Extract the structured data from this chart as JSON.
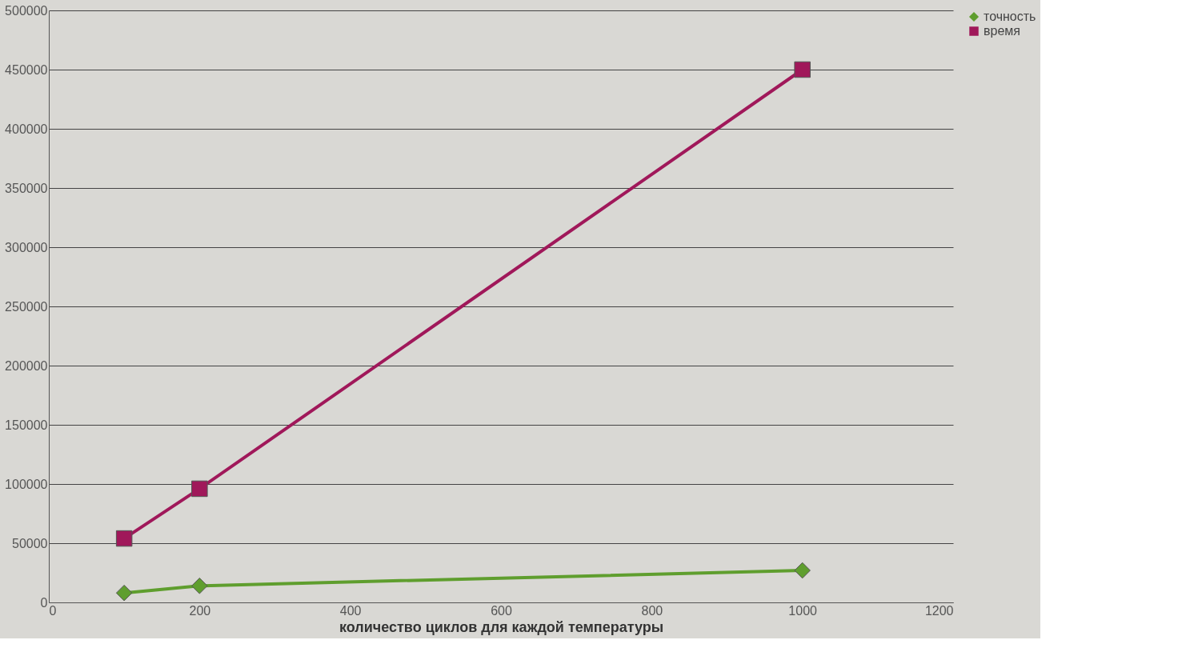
{
  "chart_data": {
    "type": "line",
    "xlabel": "количество циклов для каждой температуры",
    "x": [
      100,
      200,
      1000
    ],
    "series": [
      {
        "name": "точность",
        "color": "#5f9e2e",
        "marker": "diamond",
        "values": [
          8000,
          14000,
          27000
        ]
      },
      {
        "name": "время",
        "color": "#a0185a",
        "marker": "square",
        "values": [
          54000,
          96000,
          450000
        ]
      }
    ],
    "xlim": [
      0,
      1200
    ],
    "xticks": [
      0,
      200,
      400,
      600,
      800,
      1000,
      1200
    ],
    "ylim": [
      0,
      500000
    ],
    "yticks": [
      0,
      50000,
      100000,
      150000,
      200000,
      250000,
      300000,
      350000,
      400000,
      450000,
      500000
    ],
    "grid": "y",
    "legend": "right",
    "line_style": "solid"
  }
}
